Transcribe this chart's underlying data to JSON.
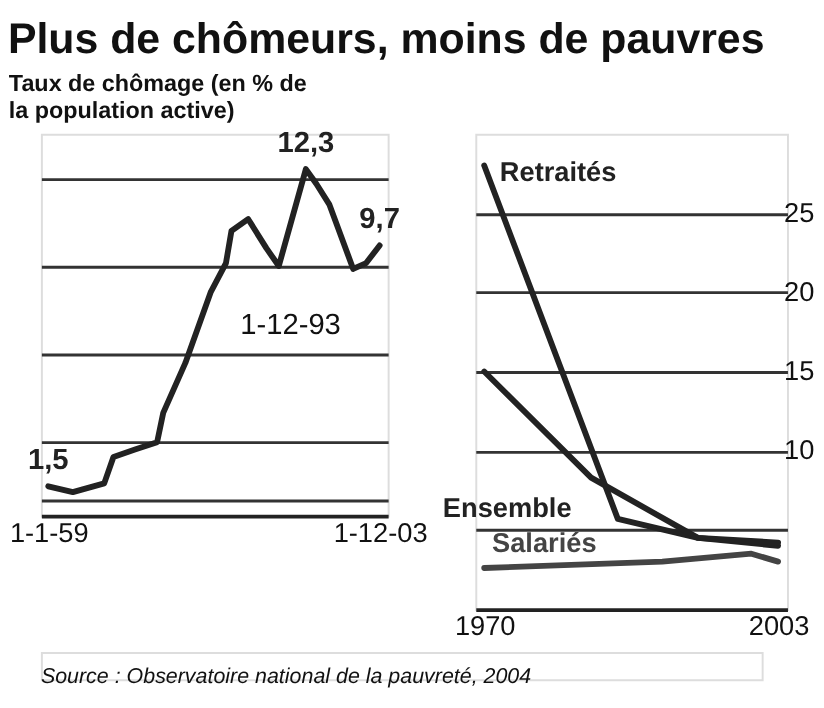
{
  "chart_data": [
    {
      "type": "line",
      "title": "Plus de chômeurs, moins de pauvres",
      "subtitle": "Taux de chômage (en % de la population active)",
      "x": [
        "1959-01",
        "1962-05",
        "1966-08",
        "1967-11",
        "1970-10",
        "1973-10",
        "1974-08",
        "1977-08",
        "1981-01",
        "1983-02",
        "1983-11",
        "1986-02",
        "1988-08",
        "1990-04",
        "1993-12",
        "1995-05",
        "1997-02",
        "2000-05",
        "2002-02",
        "2003-12"
      ],
      "values": [
        1.5,
        1.3,
        1.6,
        2.5,
        2.75,
        3.0,
        4.0,
        5.7,
        8.1,
        9.1,
        10.2,
        10.6,
        9.6,
        9.0,
        12.3,
        11.8,
        11.1,
        8.9,
        9.1,
        9.7
      ],
      "value_labels": [
        "1,5",
        null,
        null,
        null,
        null,
        null,
        null,
        null,
        null,
        null,
        null,
        null,
        null,
        null,
        "12,3",
        null,
        null,
        null,
        null,
        "9,7"
      ],
      "color": "#222222",
      "xlim": [
        "1958-01",
        "2005-01"
      ],
      "xticks": [
        {
          "value": "1959-01-01",
          "label": "1-1-59"
        },
        {
          "value": "2003-12-01",
          "label": "1-12-03"
        }
      ],
      "ylim": [
        0.5,
        13.5
      ],
      "yticks": [
        {
          "value": 1,
          "label": null
        },
        {
          "value": 3,
          "label": null
        },
        {
          "value": 6,
          "label": null
        },
        {
          "value": 9,
          "label": null
        },
        {
          "value": 12,
          "label": null
        }
      ],
      "tick_labels": "x",
      "grid": "y",
      "legend": false,
      "annotations": [
        "1-12-93"
      ]
    },
    {
      "type": "line",
      "series": [
        {
          "name": "Retraités",
          "color": "#222222",
          "x": [
            1970,
            1985,
            1994,
            2003
          ],
          "values": [
            28,
            5.7,
            4.5,
            4
          ]
        },
        {
          "name": "Ensemble",
          "color": "#222222",
          "x": [
            1970,
            1982,
            1994,
            2003
          ],
          "values": [
            15,
            8.3,
            4.5,
            4.2
          ]
        },
        {
          "name": "Salariés",
          "color": "#444444",
          "x": [
            1970,
            1990,
            2000,
            2003
          ],
          "values": [
            2.6,
            3,
            3.5,
            3
          ]
        }
      ],
      "xlim": [
        1969,
        2004
      ],
      "xticks": [
        1970,
        2003
      ],
      "ylim": [
        0,
        30
      ],
      "yticks": [
        {
          "value": 5,
          "label": null
        },
        10,
        15,
        20,
        25
      ],
      "grid": "y",
      "legend": false,
      "annotations": [
        "Source : Observatoire national de la pauvreté, 2004"
      ]
    }
  ]
}
